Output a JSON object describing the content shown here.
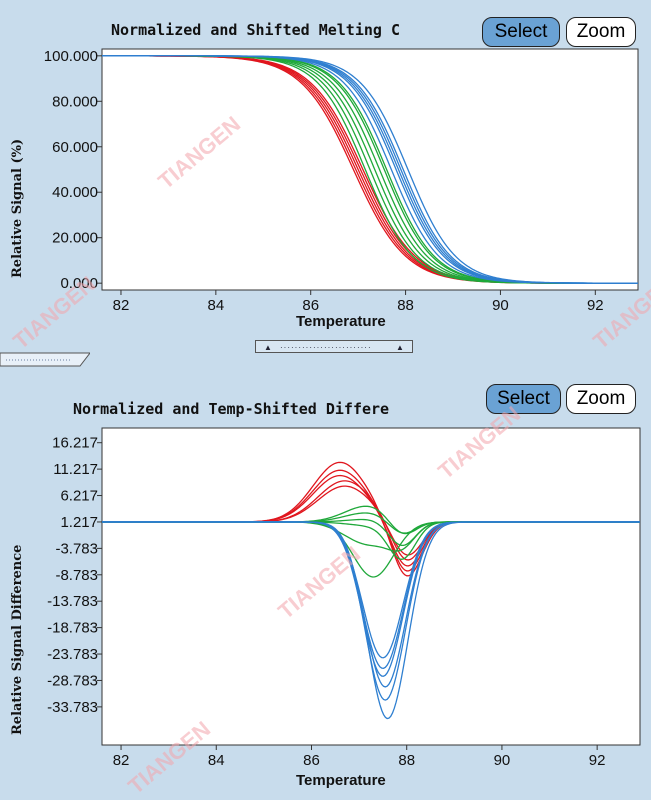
{
  "top_panel": {
    "title": "Normalized and Shifted Melting C",
    "select_label": "Select",
    "zoom_label": "Zoom"
  },
  "bottom_panel": {
    "title": "Normalized and Temp-Shifted Differe",
    "select_label": "Select",
    "zoom_label": "Zoom"
  },
  "watermark_text": "TIANGEN",
  "colors": {
    "red": "#e0161e",
    "green": "#1fa83a",
    "blue": "#2f7fd0",
    "background": "#c8dcec"
  },
  "chart_data": [
    {
      "type": "line",
      "title": "Normalized and Shifted Melting C",
      "xlabel": "Temperature",
      "ylabel": "Relative Signal (%)",
      "xlim": [
        81.6,
        92.9
      ],
      "ylim": [
        -3,
        103
      ],
      "xticks": [
        82,
        84,
        86,
        88,
        90,
        92
      ],
      "yticks": [
        100,
        80,
        60,
        40,
        20,
        0
      ],
      "ytick_labels": [
        "100.000",
        "80.000",
        "60.000",
        "40.000",
        "20.000",
        "0.000"
      ],
      "grid": false,
      "series_groups": [
        {
          "color_key": "red",
          "count": 5,
          "tm": [
            86.9,
            86.95,
            87.0,
            87.05,
            87.1
          ],
          "width": 0.55
        },
        {
          "color_key": "green",
          "count": 6,
          "tm": [
            87.15,
            87.25,
            87.35,
            87.45,
            87.55,
            87.6
          ],
          "width": 0.5
        },
        {
          "color_key": "blue",
          "count": 6,
          "tm": [
            87.7,
            87.8,
            87.85,
            87.9,
            87.95,
            88.05
          ],
          "width": 0.5
        }
      ]
    },
    {
      "type": "line",
      "title": "Normalized and Temp-Shifted Differe",
      "xlabel": "Temperature",
      "ylabel": "Relative Signal Difference",
      "xlim": [
        81.6,
        92.9
      ],
      "ylim": [
        -41,
        19
      ],
      "xticks": [
        82,
        84,
        86,
        88,
        90,
        92
      ],
      "yticks": [
        16.217,
        11.217,
        6.217,
        1.217,
        -3.783,
        -8.783,
        -13.783,
        -18.783,
        -23.783,
        -28.783,
        -33.783
      ],
      "ytick_labels": [
        "16.217",
        "11.217",
        "6.217",
        "1.217",
        "-3.783",
        "-8.783",
        "-13.783",
        "-18.783",
        "-23.783",
        "-28.783",
        "-33.783"
      ],
      "grid": false,
      "baseline": 1.217,
      "series_groups": [
        {
          "color_key": "red",
          "count": 5,
          "peaks": [
            [
              86.6,
              12.5,
              0.8,
              88.0,
              -9.5,
              0.45
            ],
            [
              86.6,
              11.0,
              0.8,
              88.0,
              -8.5,
              0.45
            ],
            [
              86.6,
              10.0,
              0.8,
              88.0,
              -7.5,
              0.45
            ],
            [
              86.7,
              9.0,
              0.8,
              88.0,
              -6.5,
              0.45
            ],
            [
              86.7,
              8.0,
              0.8,
              88.0,
              -5.5,
              0.45
            ]
          ]
        },
        {
          "color_key": "green",
          "count": 6,
          "peaks": [
            [
              87.2,
              4.3,
              0.7,
              87.9,
              -2.0,
              0.4
            ],
            [
              87.2,
              3.0,
              0.7,
              87.9,
              -1.5,
              0.4
            ],
            [
              87.3,
              1.8,
              0.7,
              87.9,
              -3.5,
              0.4
            ],
            [
              87.3,
              0.5,
              0.7,
              87.9,
              -5.5,
              0.4
            ],
            [
              87.2,
              -3.0,
              0.7,
              87.9,
              -2.5,
              0.4
            ],
            [
              87.3,
              -9.2,
              0.6,
              88.0,
              0.0,
              0.4
            ]
          ]
        },
        {
          "color_key": "blue",
          "count": 6,
          "peaks": [
            [
              87.5,
              -24.5,
              0.6,
              0,
              0,
              1
            ],
            [
              87.5,
              -26.5,
              0.6,
              0,
              0,
              1
            ],
            [
              87.5,
              -28.0,
              0.6,
              0,
              0,
              1
            ],
            [
              87.55,
              -30.0,
              0.6,
              0,
              0,
              1
            ],
            [
              87.55,
              -32.5,
              0.6,
              0,
              0,
              1
            ],
            [
              87.6,
              -36.0,
              0.6,
              0,
              0,
              1
            ]
          ]
        }
      ]
    }
  ]
}
